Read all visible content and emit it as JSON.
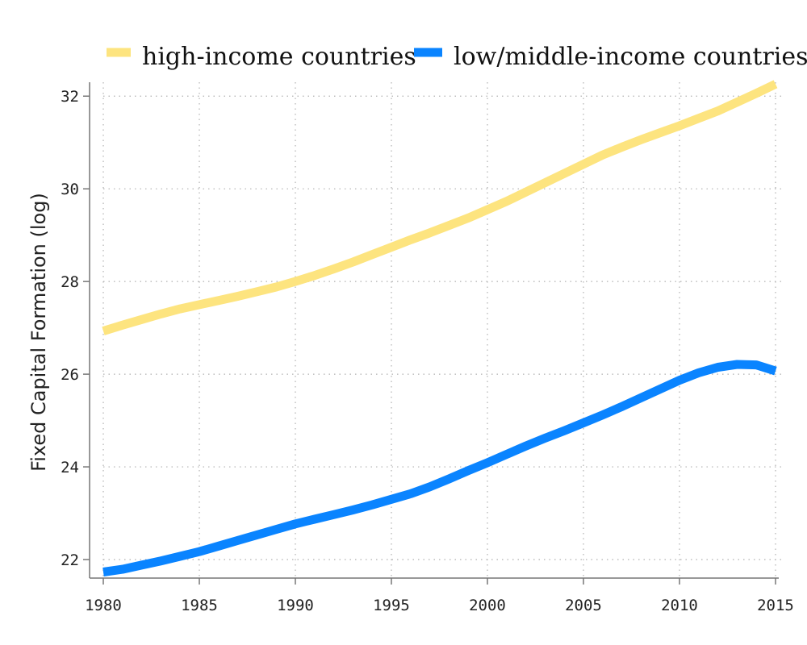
{
  "chart_data": {
    "type": "line",
    "xlabel": "",
    "ylabel": "Fixed Capital Formation (log)",
    "xlim": [
      1980,
      2015
    ],
    "ylim": [
      21.6,
      32.3
    ],
    "xticks": [
      1980,
      1985,
      1990,
      1995,
      2000,
      2005,
      2010,
      2015
    ],
    "yticks": [
      22,
      24,
      26,
      28,
      30,
      32
    ],
    "grid": true,
    "legend_position": "top",
    "x": [
      1980,
      1981,
      1982,
      1983,
      1984,
      1985,
      1986,
      1987,
      1988,
      1989,
      1990,
      1991,
      1992,
      1993,
      1994,
      1995,
      1996,
      1997,
      1998,
      1999,
      2000,
      2001,
      2002,
      2003,
      2004,
      2005,
      2006,
      2007,
      2008,
      2009,
      2010,
      2011,
      2012,
      2013,
      2014,
      2015
    ],
    "series": [
      {
        "name": "high-income countries",
        "color": "#fde47f",
        "values": [
          26.93,
          27.06,
          27.18,
          27.3,
          27.41,
          27.5,
          27.59,
          27.68,
          27.78,
          27.88,
          28.0,
          28.13,
          28.27,
          28.42,
          28.58,
          28.74,
          28.9,
          29.05,
          29.21,
          29.37,
          29.55,
          29.73,
          29.93,
          30.13,
          30.33,
          30.53,
          30.73,
          30.9,
          31.06,
          31.21,
          31.36,
          31.52,
          31.68,
          31.87,
          32.06,
          32.26
        ]
      },
      {
        "name": "low/middle-income countries",
        "color": "#0a84ff",
        "values": [
          21.73,
          21.79,
          21.88,
          21.97,
          22.07,
          22.17,
          22.29,
          22.41,
          22.53,
          22.65,
          22.77,
          22.87,
          22.97,
          23.07,
          23.18,
          23.3,
          23.42,
          23.57,
          23.74,
          23.92,
          24.09,
          24.27,
          24.45,
          24.62,
          24.78,
          24.95,
          25.12,
          25.3,
          25.49,
          25.68,
          25.87,
          26.03,
          26.15,
          26.21,
          26.2,
          26.07
        ]
      }
    ]
  }
}
